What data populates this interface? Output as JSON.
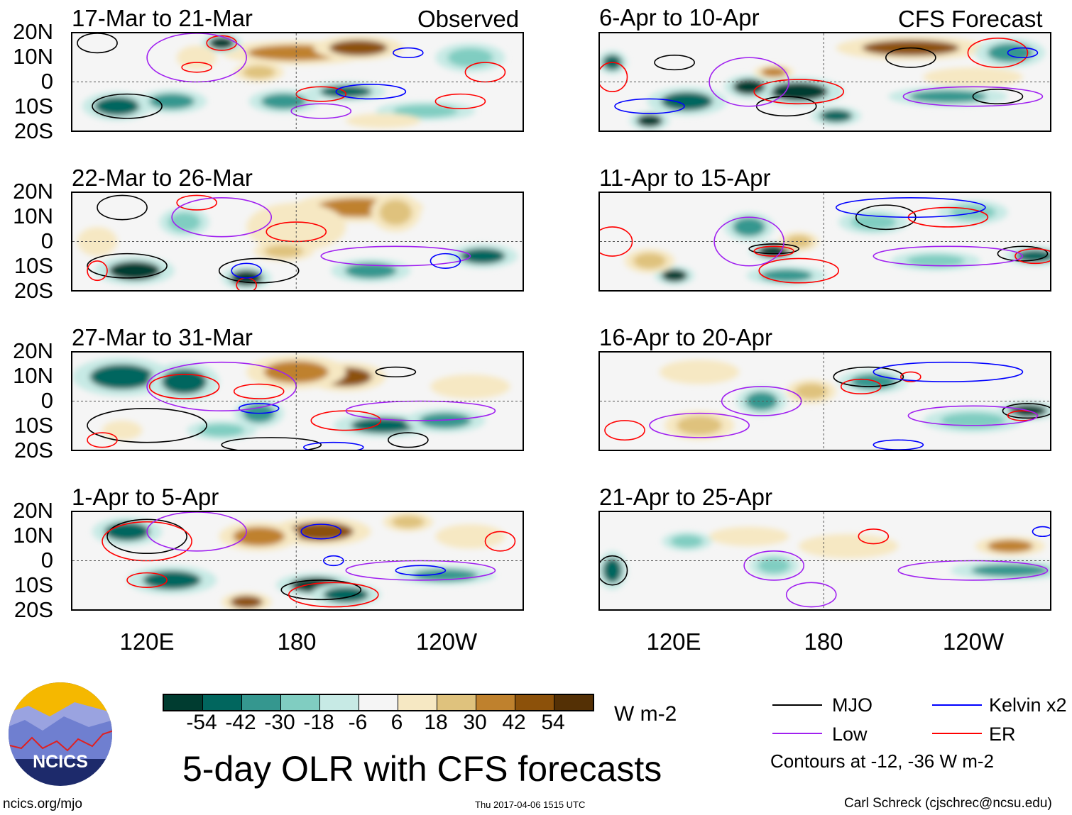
{
  "headers": {
    "observed": "Observed",
    "forecast": "CFS Forecast"
  },
  "lat_labels": [
    "20N",
    "10N",
    "0",
    "10S",
    "20S"
  ],
  "lon_labels": [
    "120E",
    "180",
    "120W"
  ],
  "panels": [
    {
      "title": "17-Mar to 21-Mar",
      "column": "observed",
      "anomalies": [
        [
          180,
          12,
          30,
          5,
          42
        ],
        [
          205,
          14,
          18,
          5,
          54
        ],
        [
          150,
          16,
          8,
          4,
          -54
        ],
        [
          108,
          -10,
          14,
          6,
          -42
        ],
        [
          130,
          -8,
          14,
          5,
          -30
        ],
        [
          175,
          -8,
          14,
          5,
          -30
        ],
        [
          200,
          -4,
          16,
          4,
          -42
        ],
        [
          165,
          4,
          10,
          4,
          30
        ],
        [
          232,
          -12,
          20,
          4,
          -18
        ],
        [
          250,
          10,
          14,
          6,
          -18
        ],
        [
          140,
          10,
          8,
          5,
          18
        ],
        [
          215,
          -16,
          15,
          3,
          18
        ]
      ],
      "contours": [
        [
          "MJO",
          112,
          -10,
          14,
          5
        ],
        [
          "MJO",
          100,
          16,
          8,
          4
        ],
        [
          "ER",
          150,
          16,
          6,
          3
        ],
        [
          "ER",
          140,
          6,
          6,
          2
        ],
        [
          "ER",
          190,
          -5,
          10,
          3
        ],
        [
          "ER",
          246,
          -8,
          10,
          3
        ],
        [
          "ER",
          256,
          4,
          8,
          4
        ],
        [
          "Kelvin",
          210,
          -4,
          14,
          3
        ],
        [
          "Kelvin",
          225,
          12,
          6,
          2
        ],
        [
          "Low",
          140,
          10,
          20,
          10
        ],
        [
          "Low",
          190,
          -12,
          12,
          3
        ]
      ]
    },
    {
      "title": "22-Mar to 26-Mar",
      "column": "observed",
      "anomalies": [
        [
          205,
          14,
          26,
          6,
          42
        ],
        [
          220,
          12,
          10,
          8,
          30
        ],
        [
          180,
          6,
          20,
          10,
          18
        ],
        [
          115,
          -12,
          16,
          6,
          -54
        ],
        [
          160,
          -15,
          10,
          5,
          -54
        ],
        [
          210,
          -12,
          16,
          5,
          -30
        ],
        [
          255,
          -6,
          14,
          5,
          -42
        ],
        [
          135,
          8,
          10,
          6,
          -18
        ],
        [
          175,
          -4,
          12,
          4,
          30
        ],
        [
          100,
          0,
          8,
          6,
          18
        ]
      ],
      "contours": [
        [
          "MJO",
          112,
          -10,
          16,
          5
        ],
        [
          "MJO",
          165,
          -12,
          16,
          5
        ],
        [
          "MJO",
          110,
          14,
          10,
          5
        ],
        [
          "ER",
          100,
          -12,
          4,
          4
        ],
        [
          "ER",
          160,
          -18,
          4,
          3
        ],
        [
          "ER",
          180,
          4,
          12,
          4
        ],
        [
          "ER",
          140,
          16,
          8,
          3
        ],
        [
          "Low",
          150,
          10,
          20,
          8
        ],
        [
          "Low",
          220,
          -6,
          30,
          4
        ],
        [
          "Kelvin",
          160,
          -12,
          6,
          3
        ],
        [
          "Kelvin",
          240,
          -8,
          6,
          3
        ]
      ]
    },
    {
      "title": "27-Mar to 31-Mar",
      "column": "observed",
      "anomalies": [
        [
          200,
          10,
          16,
          6,
          54
        ],
        [
          180,
          12,
          20,
          7,
          42
        ],
        [
          110,
          10,
          20,
          8,
          -42
        ],
        [
          135,
          8,
          14,
          8,
          -42
        ],
        [
          165,
          -5,
          10,
          6,
          -30
        ],
        [
          215,
          -10,
          20,
          5,
          -42
        ],
        [
          240,
          -8,
          16,
          5,
          -30
        ],
        [
          110,
          -12,
          8,
          4,
          18
        ],
        [
          150,
          -12,
          14,
          4,
          -18
        ],
        [
          250,
          6,
          16,
          5,
          18
        ]
      ],
      "contours": [
        [
          "MJO",
          120,
          -10,
          24,
          7
        ],
        [
          "MJO",
          170,
          -18,
          20,
          3
        ],
        [
          "MJO",
          225,
          -16,
          8,
          3
        ],
        [
          "MJO",
          220,
          12,
          8,
          2
        ],
        [
          "ER",
          135,
          6,
          14,
          5
        ],
        [
          "ER",
          165,
          4,
          10,
          3
        ],
        [
          "ER",
          200,
          -8,
          14,
          4
        ],
        [
          "ER",
          102,
          -16,
          6,
          3
        ],
        [
          "Kelvin",
          165,
          -3,
          8,
          2
        ],
        [
          "Kelvin",
          195,
          -19,
          12,
          2
        ],
        [
          "Low",
          150,
          6,
          30,
          10
        ],
        [
          "Low",
          230,
          -4,
          30,
          4
        ]
      ]
    },
    {
      "title": "1-Apr to 5-Apr",
      "column": "observed",
      "anomalies": [
        [
          190,
          12,
          20,
          6,
          54
        ],
        [
          165,
          10,
          16,
          6,
          42
        ],
        [
          112,
          12,
          14,
          6,
          -42
        ],
        [
          130,
          -8,
          18,
          6,
          -42
        ],
        [
          188,
          -10,
          16,
          5,
          -54
        ],
        [
          200,
          -14,
          14,
          5,
          -42
        ],
        [
          240,
          -6,
          20,
          4,
          -30
        ],
        [
          160,
          -17,
          10,
          4,
          54
        ],
        [
          250,
          10,
          14,
          5,
          18
        ],
        [
          225,
          16,
          10,
          4,
          30
        ]
      ],
      "contours": [
        [
          "MJO",
          120,
          10,
          16,
          7
        ],
        [
          "MJO",
          190,
          -12,
          16,
          4
        ],
        [
          "ER",
          120,
          8,
          18,
          8
        ],
        [
          "ER",
          195,
          -14,
          18,
          5
        ],
        [
          "ER",
          262,
          8,
          6,
          4
        ],
        [
          "ER",
          120,
          -8,
          8,
          3
        ],
        [
          "Kelvin",
          190,
          12,
          8,
          3
        ],
        [
          "Kelvin",
          195,
          0,
          4,
          2
        ],
        [
          "Kelvin",
          230,
          -4,
          10,
          2
        ],
        [
          "Low",
          140,
          12,
          20,
          8
        ],
        [
          "Low",
          230,
          -4,
          30,
          4
        ]
      ]
    },
    {
      "title": "6-Apr to 10-Apr",
      "column": "forecast",
      "anomalies": [
        [
          215,
          14,
          30,
          5,
          54
        ],
        [
          170,
          -4,
          18,
          6,
          -54
        ],
        [
          150,
          -2,
          10,
          5,
          -54
        ],
        [
          125,
          -8,
          16,
          6,
          -42
        ],
        [
          110,
          -16,
          8,
          4,
          -54
        ],
        [
          95,
          8,
          6,
          5,
          -42
        ],
        [
          230,
          -6,
          24,
          4,
          -30
        ],
        [
          255,
          12,
          14,
          6,
          -30
        ],
        [
          160,
          4,
          8,
          3,
          42
        ],
        [
          185,
          -14,
          10,
          4,
          -42
        ],
        [
          240,
          2,
          20,
          4,
          18
        ]
      ],
      "contours": [
        [
          "MJO",
          120,
          8,
          8,
          3
        ],
        [
          "MJO",
          215,
          10,
          10,
          4
        ],
        [
          "MJO",
          250,
          -6,
          10,
          3
        ],
        [
          "MJO",
          165,
          -10,
          12,
          4
        ],
        [
          "ER",
          170,
          -4,
          18,
          5
        ],
        [
          "ER",
          250,
          12,
          12,
          6
        ],
        [
          "ER",
          95,
          2,
          6,
          6
        ],
        [
          "Kelvin",
          110,
          -10,
          14,
          3
        ],
        [
          "Kelvin",
          260,
          12,
          6,
          2
        ],
        [
          "Low",
          240,
          -6,
          28,
          4
        ],
        [
          "Low",
          150,
          0,
          16,
          10
        ]
      ]
    },
    {
      "title": "11-Apr to 15-Apr",
      "column": "forecast",
      "anomalies": [
        [
          160,
          -4,
          10,
          4,
          -54
        ],
        [
          120,
          -14,
          8,
          4,
          -54
        ],
        [
          150,
          6,
          10,
          6,
          -30
        ],
        [
          165,
          -14,
          16,
          4,
          -30
        ],
        [
          200,
          8,
          14,
          5,
          -18
        ],
        [
          265,
          -6,
          12,
          4,
          -42
        ],
        [
          225,
          -8,
          18,
          4,
          -18
        ],
        [
          170,
          0,
          8,
          4,
          30
        ],
        [
          110,
          -8,
          10,
          5,
          30
        ],
        [
          240,
          12,
          14,
          5,
          -18
        ]
      ],
      "contours": [
        [
          "MJO",
          205,
          10,
          12,
          5
        ],
        [
          "MJO",
          160,
          -3,
          10,
          2
        ],
        [
          "MJO",
          260,
          -5,
          10,
          3
        ],
        [
          "ER",
          160,
          -4,
          8,
          2
        ],
        [
          "ER",
          230,
          10,
          16,
          4
        ],
        [
          "ER",
          170,
          -12,
          16,
          5
        ],
        [
          "ER",
          265,
          -6,
          8,
          3
        ],
        [
          "ER",
          95,
          0,
          8,
          6
        ],
        [
          "Kelvin",
          215,
          14,
          30,
          4
        ],
        [
          "Low",
          230,
          -6,
          30,
          4
        ],
        [
          "Low",
          150,
          0,
          14,
          10
        ]
      ]
    },
    {
      "title": "16-Apr to 20-Apr",
      "column": "forecast",
      "anomalies": [
        [
          155,
          0,
          10,
          6,
          -30
        ],
        [
          130,
          -10,
          14,
          6,
          30
        ],
        [
          175,
          4,
          10,
          5,
          30
        ],
        [
          200,
          8,
          14,
          5,
          -30
        ],
        [
          262,
          -4,
          12,
          4,
          -54
        ],
        [
          240,
          -8,
          20,
          5,
          -18
        ],
        [
          130,
          12,
          16,
          5,
          18
        ]
      ],
      "contours": [
        [
          "MJO",
          198,
          10,
          14,
          4
        ],
        [
          "MJO",
          262,
          -4,
          10,
          3
        ],
        [
          "ER",
          100,
          -12,
          8,
          4
        ],
        [
          "ER",
          195,
          6,
          8,
          3
        ],
        [
          "ER",
          215,
          10,
          4,
          2
        ],
        [
          "ER",
          260,
          -6,
          6,
          2
        ],
        [
          "Kelvin",
          230,
          12,
          30,
          4
        ],
        [
          "Kelvin",
          210,
          -18,
          10,
          2
        ],
        [
          "Low",
          155,
          0,
          16,
          6
        ],
        [
          "Low",
          240,
          -6,
          26,
          4
        ],
        [
          "Low",
          130,
          -10,
          20,
          5
        ]
      ]
    },
    {
      "title": "21-Apr to 25-Apr",
      "column": "forecast",
      "anomalies": [
        [
          255,
          -4,
          24,
          4,
          -30
        ],
        [
          255,
          6,
          14,
          4,
          42
        ],
        [
          160,
          -2,
          10,
          5,
          -18
        ],
        [
          125,
          8,
          10,
          4,
          -18
        ],
        [
          190,
          6,
          20,
          5,
          18
        ],
        [
          95,
          -4,
          6,
          8,
          -42
        ],
        [
          150,
          10,
          16,
          4,
          18
        ]
      ],
      "contours": [
        [
          "MJO",
          95,
          -4,
          6,
          6
        ],
        [
          "ER",
          200,
          10,
          6,
          3
        ],
        [
          "Low",
          160,
          -2,
          12,
          6
        ],
        [
          "Low",
          240,
          -4,
          30,
          4
        ],
        [
          "Low",
          175,
          -14,
          10,
          5
        ],
        [
          "Kelvin",
          268,
          12,
          4,
          2
        ]
      ]
    }
  ],
  "colorbar": {
    "ticks": [
      "-54",
      "-42",
      "-30",
      "-18",
      "-6",
      "6",
      "18",
      "30",
      "42",
      "54"
    ],
    "colors": [
      "#003c30",
      "#01665e",
      "#35978f",
      "#80cdc1",
      "#c7eae5",
      "#f5f5f5",
      "#f6e8c3",
      "#dfc27d",
      "#bf812d",
      "#8c510a",
      "#543005"
    ],
    "units": "W m-2"
  },
  "legend": {
    "mjo": "MJO",
    "kelvin": "Kelvin x2",
    "low": "Low",
    "er": "ER",
    "note": "Contours at -12, -36 W m-2",
    "colors": {
      "MJO": "#000000",
      "Kelvin": "#0000ff",
      "Low": "#a020f0",
      "ER": "#ff0000"
    }
  },
  "title": "5-day OLR with CFS forecasts",
  "logo": "NCICS",
  "url": "ncics.org/mjo",
  "timestamp": "Thu 2017-04-06 1515 UTC",
  "credit": "Carl Schreck (cjschrec@ncsu.edu)"
}
